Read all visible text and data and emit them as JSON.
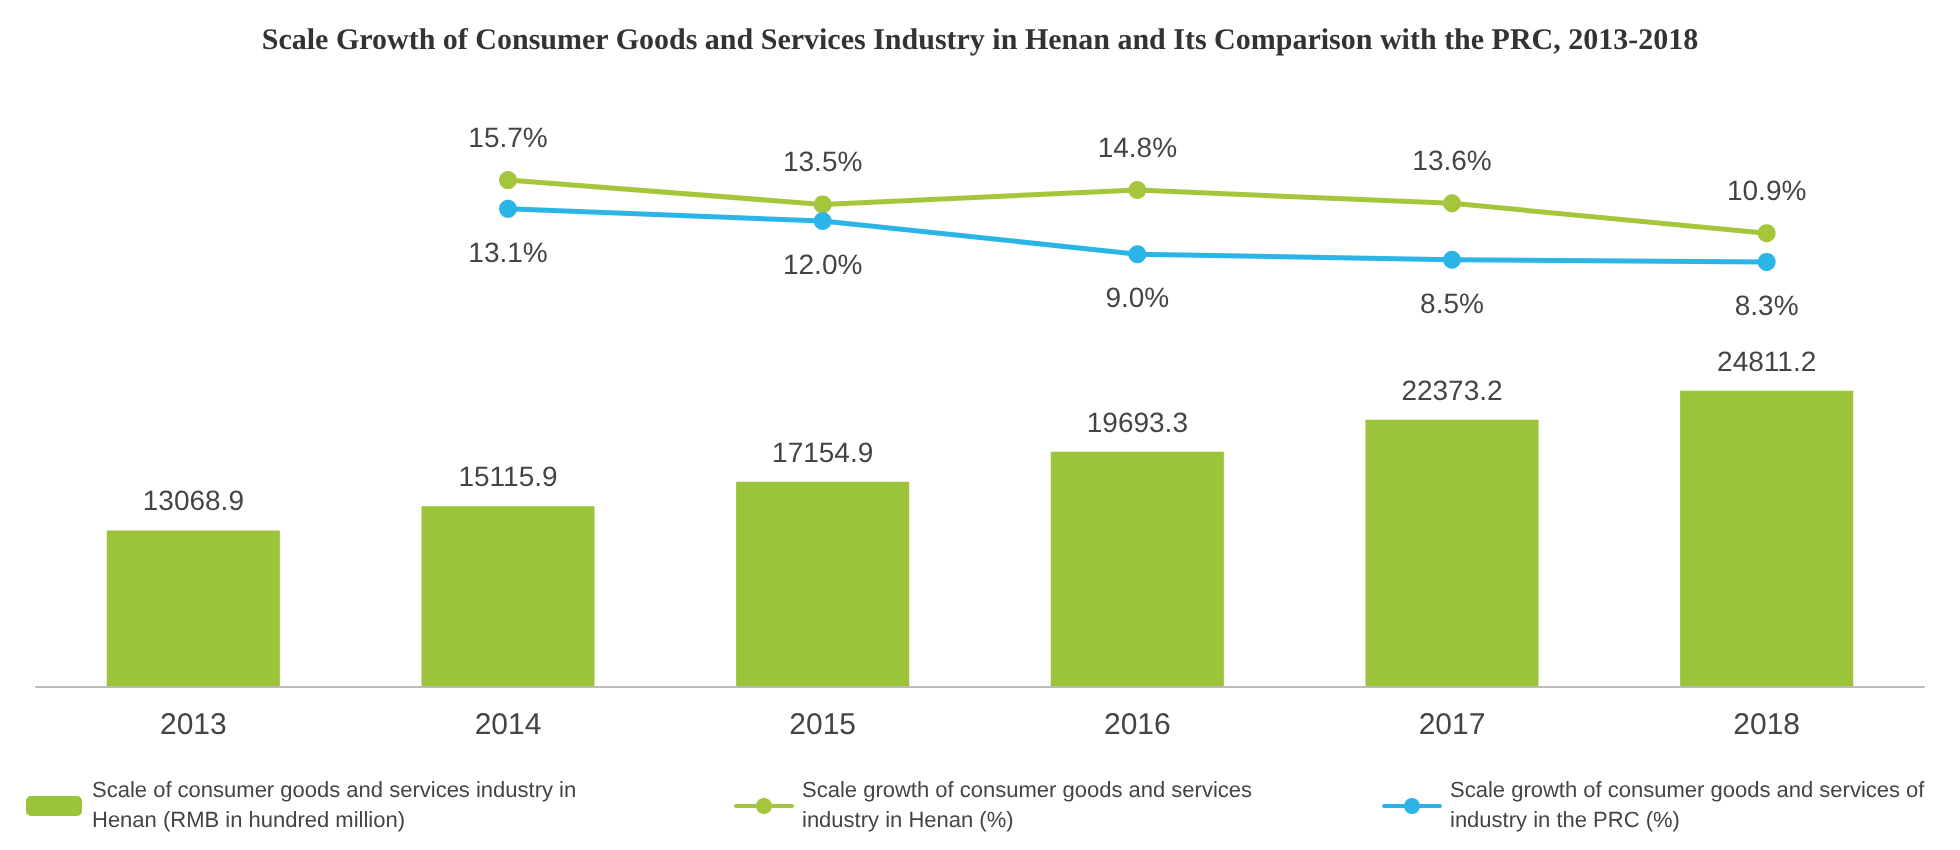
{
  "chart_data": [
    {
      "type": "line",
      "title": "Scale Growth of Consumer Goods and Services Industry in Henan and Its Comparison with the PRC, 2013-2018",
      "categories": [
        "2013",
        "2014",
        "2015",
        "2016",
        "2017",
        "2018"
      ],
      "series": [
        {
          "name": "Scale growth of consumer goods and services industry in Henan (%)",
          "color": "#a5c63b",
          "values": [
            null,
            15.7,
            13.5,
            14.8,
            13.6,
            10.9
          ],
          "value_labels": [
            null,
            "15.7%",
            "13.5%",
            "14.8%",
            "13.6%",
            "10.9%"
          ]
        },
        {
          "name": "Scale growth of consumer goods and services of industry in the PRC (%)",
          "color": "#2bb5e6",
          "values": [
            null,
            13.1,
            12.0,
            9.0,
            8.5,
            8.3
          ],
          "value_labels": [
            null,
            "13.1%",
            "12.0%",
            "9.0%",
            "8.5%",
            "8.3%"
          ]
        }
      ],
      "tick_labels": false,
      "grid": false,
      "legend": "bottom right",
      "marker": "circle",
      "line_style": "solid"
    },
    {
      "type": "bar",
      "categories": [
        "2013",
        "2014",
        "2015",
        "2016",
        "2017",
        "2018"
      ],
      "series": [
        {
          "name": "Scale of consumer goods and services industry in Henan (RMB in hundred million)",
          "color": "#9cc43a",
          "values": [
            13068.9,
            15115.9,
            17154.9,
            19693.3,
            22373.2,
            24811.2
          ]
        }
      ],
      "data_labels": true,
      "tick_labels": "x",
      "grid": false,
      "legend": "bottom left"
    }
  ]
}
